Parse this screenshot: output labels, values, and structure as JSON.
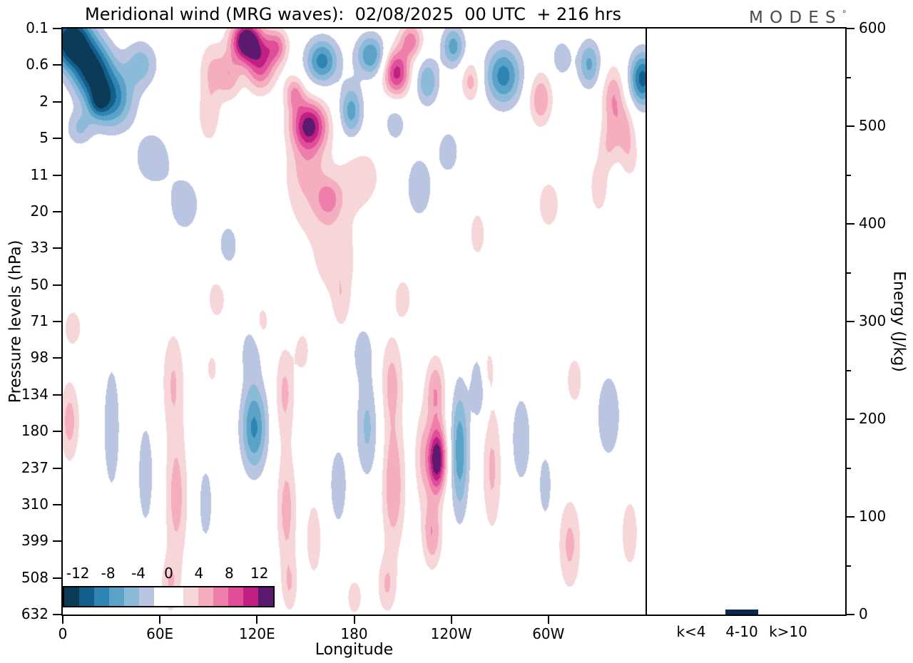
{
  "header": {
    "title": "Meridional wind (MRG waves):  02/08/2025  00 UTC  + 216 hrs",
    "brand": "MODES",
    "brand_sup": "°"
  },
  "axes": {
    "left_label": "Pressure levels (hPa)",
    "right_label": "Energy (J/kg)",
    "bottom_label": "Longitude"
  },
  "chart_data": {
    "type": "heatmap",
    "title": "Meridional wind (MRG waves): 02/08/2025 00 UTC + 216 hrs",
    "xlabel": "Longitude",
    "ylabel": "Pressure levels (hPa)",
    "y2label": "Energy (J/kg)",
    "x_tick_lons": [
      0,
      60,
      120,
      180,
      240,
      300
    ],
    "x_tick_labels": [
      "0",
      "60E",
      "120E",
      "180",
      "120W",
      "60W"
    ],
    "x_range_deg": [
      0,
      360
    ],
    "pressure_levels": [
      0.1,
      0.6,
      2,
      5,
      11,
      20,
      33,
      50,
      71,
      98,
      134,
      180,
      237,
      310,
      399,
      508,
      632
    ],
    "energy_axis": {
      "min": 0,
      "max": 600,
      "ticks": [
        600,
        500,
        400,
        300,
        200,
        100,
        0
      ],
      "minor_step": 50
    },
    "colorbar": {
      "labels": [
        "-12",
        "-8",
        "-4",
        "0",
        "4",
        "8",
        "12"
      ],
      "min": -14,
      "max": 14,
      "step": 2,
      "colors": [
        "#0c3b57",
        "#135f8c",
        "#2e84b3",
        "#5aa2c8",
        "#8cbad9",
        "#bac5e1",
        "#ffffff",
        "#ffffff",
        "#f7d6da",
        "#f4aec0",
        "#ee7fab",
        "#e04e9a",
        "#c12083",
        "#5c1a6e"
      ]
    },
    "field_units_range": [
      -14,
      14
    ],
    "field_blobs": [
      [
        5,
        0.02,
        12,
        0.045,
        -15
      ],
      [
        18,
        0.07,
        12,
        0.05,
        -12
      ],
      [
        30,
        0.12,
        13,
        0.05,
        -9
      ],
      [
        22,
        0.125,
        6,
        0.025,
        -5
      ],
      [
        48,
        0.06,
        10,
        0.04,
        -5
      ],
      [
        10,
        0.17,
        8,
        0.03,
        -4
      ],
      [
        55,
        0.22,
        12,
        0.05,
        -3.5
      ],
      [
        75,
        0.3,
        12,
        0.06,
        -3
      ],
      [
        92,
        0.07,
        8,
        0.05,
        4
      ],
      [
        113,
        0.02,
        9,
        0.035,
        15
      ],
      [
        122,
        0.06,
        9,
        0.045,
        9
      ],
      [
        103,
        0.08,
        7,
        0.04,
        5
      ],
      [
        132,
        0.03,
        7,
        0.03,
        7
      ],
      [
        90,
        0.15,
        7,
        0.05,
        3.5
      ],
      [
        160,
        0.055,
        10,
        0.038,
        -9
      ],
      [
        152,
        0.165,
        11,
        0.042,
        13
      ],
      [
        143,
        0.11,
        6,
        0.03,
        6
      ],
      [
        150,
        0.235,
        12,
        0.05,
        3.5
      ],
      [
        178,
        0.14,
        7,
        0.045,
        -7
      ],
      [
        190,
        0.045,
        9,
        0.035,
        -8
      ],
      [
        206,
        0.075,
        8,
        0.04,
        11
      ],
      [
        215,
        0.02,
        7,
        0.03,
        7
      ],
      [
        225,
        0.09,
        7,
        0.04,
        -6
      ],
      [
        241,
        0.03,
        7,
        0.035,
        -7
      ],
      [
        252,
        0.09,
        6,
        0.035,
        5
      ],
      [
        272,
        0.08,
        11,
        0.05,
        -9
      ],
      [
        295,
        0.12,
        7,
        0.045,
        6
      ],
      [
        308,
        0.05,
        6,
        0.03,
        -4
      ],
      [
        325,
        0.06,
        7,
        0.04,
        -6.5
      ],
      [
        340,
        0.12,
        7,
        0.055,
        6
      ],
      [
        337,
        0.2,
        6,
        0.04,
        3.5
      ],
      [
        347,
        0.17,
        6,
        0.04,
        4
      ],
      [
        358,
        0.085,
        8,
        0.045,
        -11
      ],
      [
        205,
        0.16,
        8,
        0.04,
        -3
      ],
      [
        160,
        0.3,
        22,
        0.07,
        3.5
      ],
      [
        185,
        0.25,
        12,
        0.05,
        3
      ],
      [
        168,
        0.4,
        14,
        0.06,
        3.2
      ],
      [
        164,
        0.29,
        7,
        0.03,
        4
      ],
      [
        172,
        0.47,
        6,
        0.05,
        3
      ],
      [
        220,
        0.27,
        9,
        0.06,
        -3.5
      ],
      [
        238,
        0.21,
        7,
        0.04,
        -3.5
      ],
      [
        256,
        0.35,
        6,
        0.05,
        3
      ],
      [
        300,
        0.3,
        8,
        0.05,
        3.2
      ],
      [
        331,
        0.27,
        6,
        0.05,
        3.5
      ],
      [
        350,
        0.22,
        6,
        0.04,
        3
      ],
      [
        102,
        0.37,
        8,
        0.05,
        -2.8
      ],
      [
        6,
        0.51,
        7,
        0.04,
        3
      ],
      [
        95,
        0.46,
        7,
        0.045,
        3
      ],
      [
        123,
        0.5,
        5,
        0.035,
        3
      ],
      [
        148,
        0.55,
        5,
        0.04,
        3
      ],
      [
        210,
        0.46,
        6,
        0.04,
        3.2
      ],
      [
        185,
        0.55,
        7,
        0.05,
        -3
      ],
      [
        92,
        0.58,
        5,
        0.04,
        2.5
      ],
      [
        4,
        0.67,
        6,
        0.07,
        5
      ],
      [
        30,
        0.68,
        6,
        0.13,
        -3.4
      ],
      [
        51,
        0.76,
        7,
        0.13,
        -2.8
      ],
      [
        68,
        0.6,
        7,
        0.09,
        4
      ],
      [
        70,
        0.8,
        7,
        0.12,
        5
      ],
      [
        66,
        0.95,
        6,
        0.05,
        3.5
      ],
      [
        88,
        0.81,
        6,
        0.09,
        -2.8
      ],
      [
        118,
        0.68,
        8,
        0.075,
        -8.5
      ],
      [
        116,
        0.55,
        7,
        0.05,
        -3
      ],
      [
        137,
        0.62,
        6,
        0.08,
        4.5
      ],
      [
        138,
        0.82,
        6,
        0.1,
        5
      ],
      [
        140,
        0.95,
        5,
        0.05,
        3.5
      ],
      [
        155,
        0.87,
        6,
        0.08,
        3.2
      ],
      [
        170,
        0.78,
        7,
        0.09,
        -3
      ],
      [
        188,
        0.68,
        7,
        0.09,
        -4.5
      ],
      [
        203,
        0.6,
        7,
        0.08,
        4.5
      ],
      [
        204,
        0.78,
        7,
        0.11,
        6
      ],
      [
        200,
        0.95,
        6,
        0.05,
        4
      ],
      [
        180,
        0.97,
        6,
        0.04,
        3
      ],
      [
        231,
        0.735,
        5.5,
        0.055,
        14.5
      ],
      [
        230,
        0.62,
        6,
        0.06,
        6
      ],
      [
        228,
        0.86,
        6,
        0.06,
        6
      ],
      [
        222,
        0.73,
        5,
        0.08,
        4
      ],
      [
        245,
        0.72,
        5.5,
        0.11,
        -7.5
      ],
      [
        257,
        0.61,
        5,
        0.06,
        -4.5
      ],
      [
        265,
        0.75,
        6,
        0.11,
        4.5
      ],
      [
        262,
        0.58,
        5,
        0.05,
        3
      ],
      [
        283,
        0.7,
        7,
        0.09,
        -3.4
      ],
      [
        298,
        0.78,
        5,
        0.07,
        -3
      ],
      [
        313,
        0.88,
        7,
        0.08,
        4.6
      ],
      [
        316,
        0.6,
        6,
        0.05,
        3.2
      ],
      [
        337,
        0.66,
        10,
        0.1,
        -3
      ],
      [
        350,
        0.86,
        6,
        0.07,
        3.4
      ]
    ],
    "energy_bars": {
      "categories": [
        "k<4",
        "4-10",
        "k>10"
      ],
      "values": [
        0,
        5,
        0
      ],
      "bar_color": "#0d2750"
    }
  }
}
